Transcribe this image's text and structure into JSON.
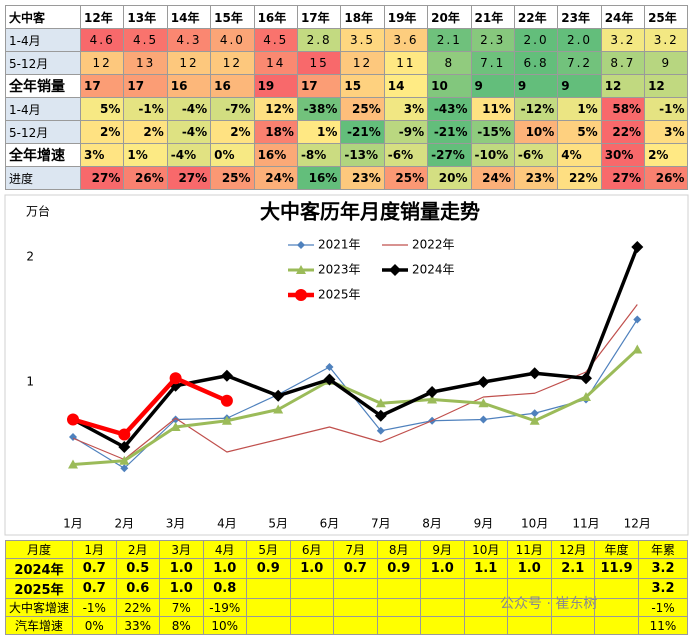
{
  "top_table": {
    "header": [
      "大中客",
      "12年",
      "13年",
      "14年",
      "15年",
      "16年",
      "17年",
      "18年",
      "19年",
      "20年",
      "21年",
      "22年",
      "23年",
      "24年",
      "25年"
    ],
    "rows": [
      {
        "label": "1-4月",
        "cells": [
          "4.6",
          "4.5",
          "4.3",
          "4.0",
          "4.5",
          "2.8",
          "3.5",
          "3.6",
          "2.1",
          "2.3",
          "2.0",
          "2.0",
          "3.2",
          "3.2"
        ]
      },
      {
        "label": "5-12月",
        "cells": [
          "12",
          "13",
          "12",
          "12",
          "14",
          "15",
          "12",
          "11",
          "8",
          "7.1",
          "6.8",
          "7.2",
          "8.7",
          "9"
        ]
      },
      {
        "label": "全年销量",
        "cells": [
          "17",
          "17",
          "16",
          "16",
          "19",
          "17",
          "15",
          "14",
          "10",
          "9",
          "9",
          "9",
          "12",
          "12"
        ]
      },
      {
        "label": "1-4月",
        "cells": [
          "5%",
          "-1%",
          "-4%",
          "-7%",
          "12%",
          "-38%",
          "25%",
          "3%",
          "-43%",
          "11%",
          "-12%",
          "1%",
          "58%",
          "-1%"
        ]
      },
      {
        "label": "5-12月",
        "cells": [
          "2%",
          "2%",
          "-4%",
          "2%",
          "18%",
          "1%",
          "-21%",
          "-9%",
          "-21%",
          "-15%",
          "10%",
          "5%",
          "22%",
          "3%"
        ]
      },
      {
        "label": "全年增速",
        "cells": [
          "3%",
          "1%",
          "-4%",
          "0%",
          "16%",
          "-8%",
          "-13%",
          "-6%",
          "-27%",
          "-10%",
          "-6%",
          "4%",
          "30%",
          "2%"
        ]
      },
      {
        "label": "进度",
        "cells": [
          "27%",
          "26%",
          "27%",
          "25%",
          "24%",
          "16%",
          "23%",
          "25%",
          "20%",
          "24%",
          "23%",
          "22%",
          "27%",
          "26%"
        ]
      }
    ]
  },
  "chart_data": {
    "type": "line",
    "title": "大中客历年月度销量走势",
    "y_label": "万台",
    "categories": [
      "1月",
      "2月",
      "3月",
      "4月",
      "5月",
      "6月",
      "7月",
      "8月",
      "9月",
      "10月",
      "11月",
      "12月"
    ],
    "ylim": [
      0,
      2.4
    ],
    "yticks": [
      1,
      2
    ],
    "series": [
      {
        "name": "2021年",
        "color": "#4f81bd",
        "marker": "diamond",
        "line_width": 1.2,
        "values": [
          0.56,
          0.31,
          0.7,
          0.71,
          0.9,
          1.12,
          0.61,
          0.69,
          0.7,
          0.75,
          0.86,
          1.5
        ]
      },
      {
        "name": "2022年",
        "color": "#c0504d",
        "marker": "none",
        "line_width": 1.2,
        "values": [
          0.55,
          0.38,
          0.71,
          0.44,
          0.54,
          0.64,
          0.52,
          0.69,
          0.88,
          0.91,
          1.08,
          1.62
        ]
      },
      {
        "name": "2023年",
        "color": "#9bbb59",
        "marker": "triangle",
        "line_width": 3,
        "values": [
          0.34,
          0.37,
          0.64,
          0.69,
          0.78,
          1.01,
          0.83,
          0.86,
          0.83,
          0.69,
          0.88,
          1.26
        ]
      },
      {
        "name": "2024年",
        "color": "#000000",
        "marker": "diamond",
        "line_width": 3.5,
        "values": [
          0.7,
          0.48,
          0.97,
          1.05,
          0.89,
          1.02,
          0.73,
          0.92,
          1.0,
          1.07,
          1.03,
          2.08
        ]
      },
      {
        "name": "2025年",
        "color": "#ff0000",
        "marker": "circle",
        "line_width": 4.5,
        "values": [
          0.7,
          0.58,
          1.03,
          0.85,
          null,
          null,
          null,
          null,
          null,
          null,
          null,
          null
        ]
      }
    ]
  },
  "bottom_table": {
    "header": [
      "月度",
      "1月",
      "2月",
      "3月",
      "4月",
      "5月",
      "6月",
      "7月",
      "8月",
      "9月",
      "10月",
      "11月",
      "12月",
      "年度",
      "年累"
    ],
    "rows": [
      {
        "label": "2024年",
        "cells": [
          "0.7",
          "0.5",
          "1.0",
          "1.0",
          "0.9",
          "1.0",
          "0.7",
          "0.9",
          "1.0",
          "1.1",
          "1.0",
          "2.1",
          "11.9",
          "3.2"
        ]
      },
      {
        "label": "2025年",
        "cells": [
          "0.7",
          "0.6",
          "1.0",
          "0.8",
          null,
          null,
          null,
          null,
          null,
          null,
          null,
          null,
          null,
          "3.2"
        ]
      },
      {
        "label": "大中客增速",
        "cells": [
          "-1%",
          "22%",
          "7%",
          "-19%",
          null,
          null,
          null,
          null,
          null,
          null,
          null,
          null,
          null,
          "-1%"
        ]
      },
      {
        "label": "汽车增速",
        "cells": [
          "0%",
          "33%",
          "8%",
          "10%",
          null,
          null,
          null,
          null,
          null,
          null,
          null,
          null,
          null,
          "11%"
        ]
      }
    ]
  },
  "watermark": "公众号 · 崔东树"
}
